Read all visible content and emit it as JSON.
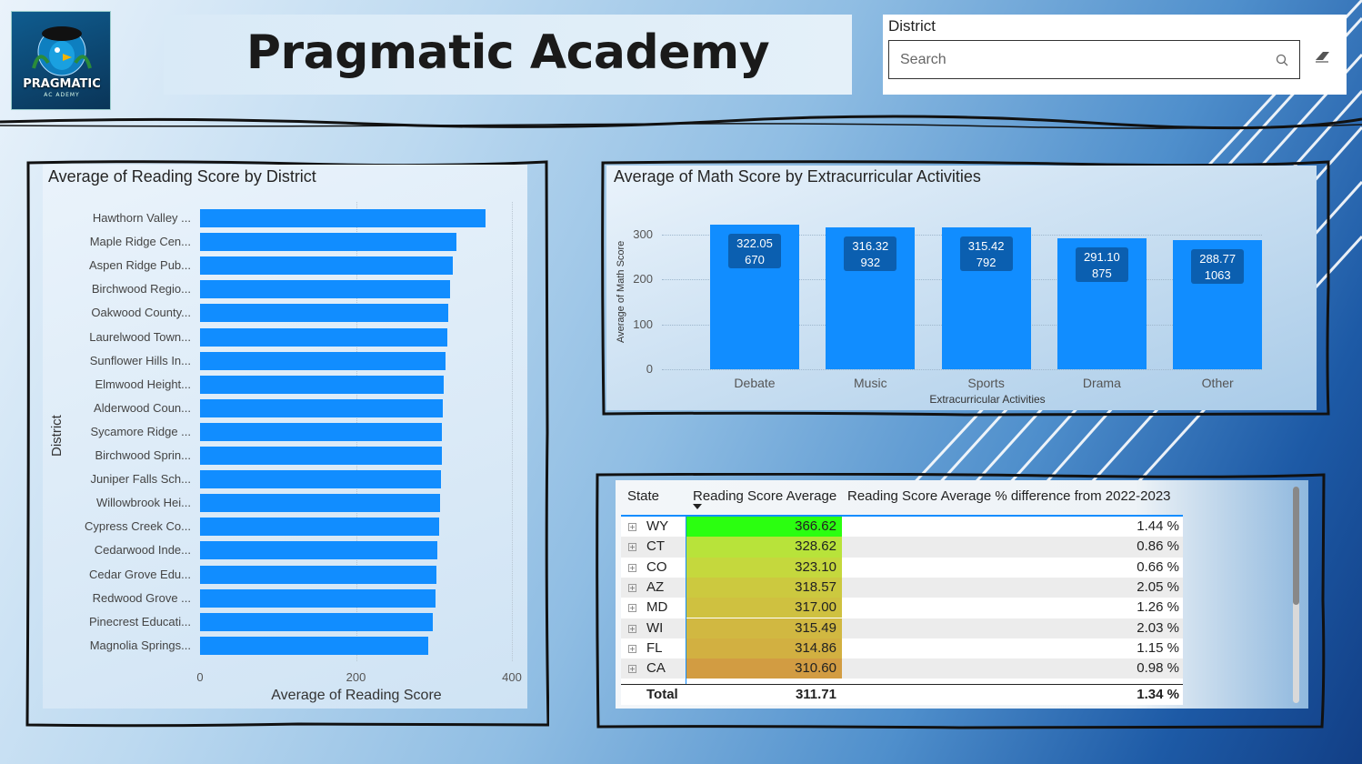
{
  "logo": {
    "name": "PRAGMATIC",
    "sub": "AC ADEMY"
  },
  "page_title": "Pragmatic Academy",
  "slicer": {
    "label": "District",
    "placeholder": "Search"
  },
  "reading_chart": {
    "title": "Average of Reading Score by District",
    "xlabel": "Average of Reading Score",
    "ylabel": "District",
    "ticks": [
      "0",
      "200",
      "400"
    ]
  },
  "math_chart": {
    "title": "Average of Math Score by Extracurricular Activities",
    "xlabel": "Extracurricular Activities",
    "ylabel": "Average of Math Score",
    "ticks": [
      "0",
      "100",
      "200",
      "300"
    ]
  },
  "chart_data": [
    {
      "type": "bar",
      "orientation": "horizontal",
      "title": "Average of Reading Score by District",
      "xlabel": "Average of Reading Score",
      "ylabel": "District",
      "xlim": [
        0,
        400
      ],
      "categories": [
        "Hawthorn Valley ...",
        "Maple Ridge Cen...",
        "Aspen Ridge Pub...",
        "Birchwood Regio...",
        "Oakwood County...",
        "Laurelwood Town...",
        "Sunflower Hills In...",
        "Elmwood Height...",
        "Alderwood Coun...",
        "Sycamore Ridge ...",
        "Birchwood Sprin...",
        "Juniper Falls Sch...",
        "Willowbrook Hei...",
        "Cypress Creek Co...",
        "Cedarwood Inde...",
        "Cedar Grove Edu...",
        "Redwood Grove ...",
        "Pinecrest Educati...",
        "Magnolia Springs..."
      ],
      "values": [
        366,
        329,
        324,
        321,
        318,
        317,
        315,
        312,
        311,
        310,
        310,
        309,
        308,
        307,
        304,
        303,
        302,
        299,
        293
      ]
    },
    {
      "type": "bar",
      "title": "Average of Math Score by Extracurricular Activities",
      "xlabel": "Extracurricular Activities",
      "ylabel": "Average of Math Score",
      "ylim": [
        0,
        330
      ],
      "categories": [
        "Debate",
        "Music",
        "Sports",
        "Drama",
        "Other"
      ],
      "values": [
        322.05,
        316.32,
        315.42,
        291.1,
        288.77
      ],
      "counts": [
        670,
        932,
        792,
        875,
        1063
      ],
      "value_labels": [
        "322.05",
        "316.32",
        "315.42",
        "291.10",
        "288.77"
      ],
      "count_labels": [
        "670",
        "932",
        "792",
        "875",
        "1063"
      ]
    },
    {
      "type": "table",
      "columns": [
        "State",
        "Reading Score Average",
        "Reading Score Average % difference from 2022-2023"
      ],
      "rows": [
        {
          "state": "WY",
          "avg": "366.62",
          "diff": "1.44 %",
          "color": "#2bff10"
        },
        {
          "state": "CT",
          "avg": "328.62",
          "diff": "0.86 %",
          "color": "#b8e33a"
        },
        {
          "state": "CO",
          "avg": "323.10",
          "diff": "0.66 %",
          "color": "#c5d83d"
        },
        {
          "state": "AZ",
          "avg": "318.57",
          "diff": "2.05 %",
          "color": "#ccc93f"
        },
        {
          "state": "MD",
          "avg": "317.00",
          "diff": "1.26 %",
          "color": "#cfc140"
        },
        {
          "state": "WI",
          "avg": "315.49",
          "diff": "2.03 %",
          "color": "#d1b841"
        },
        {
          "state": "FL",
          "avg": "314.86",
          "diff": "1.15 %",
          "color": "#d2b041"
        },
        {
          "state": "CA",
          "avg": "310.60",
          "diff": "0.98 %",
          "color": "#d29c42"
        }
      ],
      "total": {
        "label": "Total",
        "avg": "311.71",
        "diff": "1.34 %"
      }
    }
  ],
  "colors": {
    "bar": "#118dff",
    "table_header_line": "#118dff"
  }
}
